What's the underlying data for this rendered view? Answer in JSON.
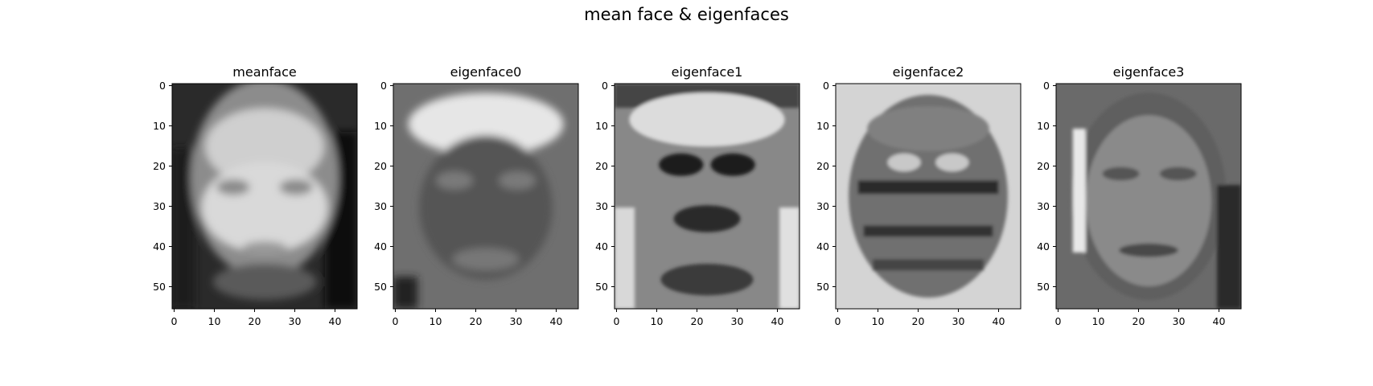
{
  "figure": {
    "suptitle": "mean face & eigenfaces"
  },
  "chart_data": [
    {
      "type": "heatmap",
      "title": "meanface",
      "colormap": "gray",
      "image_shape": [
        56,
        46
      ],
      "xticks": [
        0,
        10,
        20,
        30,
        40
      ],
      "yticks": [
        0,
        10,
        20,
        30,
        40,
        50
      ],
      "xlim": [
        -0.5,
        45.5
      ],
      "ylim": [
        55.5,
        -0.5
      ],
      "xtick_labels": [
        "0",
        "10",
        "20",
        "30",
        "40"
      ],
      "ytick_labels": [
        "0",
        "10",
        "20",
        "30",
        "40",
        "50"
      ]
    },
    {
      "type": "heatmap",
      "title": "eigenface0",
      "colormap": "gray",
      "image_shape": [
        56,
        46
      ],
      "xticks": [
        0,
        10,
        20,
        30,
        40
      ],
      "yticks": [
        0,
        10,
        20,
        30,
        40,
        50
      ],
      "xlim": [
        -0.5,
        45.5
      ],
      "ylim": [
        55.5,
        -0.5
      ],
      "xtick_labels": [
        "0",
        "10",
        "20",
        "30",
        "40"
      ],
      "ytick_labels": [
        "0",
        "10",
        "20",
        "30",
        "40",
        "50"
      ]
    },
    {
      "type": "heatmap",
      "title": "eigenface1",
      "colormap": "gray",
      "image_shape": [
        56,
        46
      ],
      "xticks": [
        0,
        10,
        20,
        30,
        40
      ],
      "yticks": [
        0,
        10,
        20,
        30,
        40,
        50
      ],
      "xlim": [
        -0.5,
        45.5
      ],
      "ylim": [
        55.5,
        -0.5
      ],
      "xtick_labels": [
        "0",
        "10",
        "20",
        "30",
        "40"
      ],
      "ytick_labels": [
        "0",
        "10",
        "20",
        "30",
        "40",
        "50"
      ]
    },
    {
      "type": "heatmap",
      "title": "eigenface2",
      "colormap": "gray",
      "image_shape": [
        56,
        46
      ],
      "xticks": [
        0,
        10,
        20,
        30,
        40
      ],
      "yticks": [
        0,
        10,
        20,
        30,
        40,
        50
      ],
      "xlim": [
        -0.5,
        45.5
      ],
      "ylim": [
        55.5,
        -0.5
      ],
      "xtick_labels": [
        "0",
        "10",
        "20",
        "30",
        "40"
      ],
      "ytick_labels": [
        "0",
        "10",
        "20",
        "30",
        "40",
        "50"
      ]
    },
    {
      "type": "heatmap",
      "title": "eigenface3",
      "colormap": "gray",
      "image_shape": [
        56,
        46
      ],
      "xticks": [
        0,
        10,
        20,
        30,
        40
      ],
      "yticks": [
        0,
        10,
        20,
        30,
        40,
        50
      ],
      "xlim": [
        -0.5,
        45.5
      ],
      "ylim": [
        55.5,
        -0.5
      ],
      "xtick_labels": [
        "0",
        "10",
        "20",
        "30",
        "40"
      ],
      "ytick_labels": [
        "0",
        "10",
        "20",
        "30",
        "40",
        "50"
      ]
    }
  ]
}
